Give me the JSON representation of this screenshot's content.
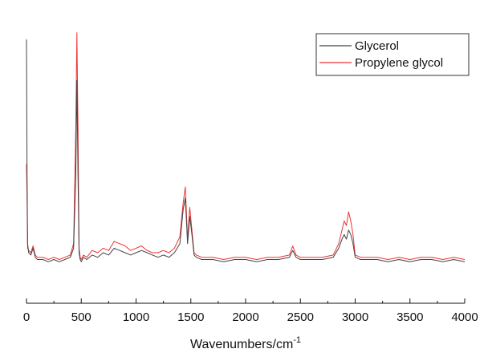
{
  "chart_data": {
    "type": "line",
    "xlabel": "Wavenumbers/cm",
    "xlabel_superscript": "-1",
    "xlim": [
      0,
      4000
    ],
    "x_ticks": [
      0,
      500,
      1000,
      1500,
      2000,
      2500,
      3000,
      3500,
      4000
    ],
    "y_axis_visible": false,
    "ylim": [
      0,
      105
    ],
    "grid": false,
    "legend_position": "top-right",
    "colors": {
      "glycerol": "#444444",
      "propylene_glycol": "#ee3333"
    },
    "series": [
      {
        "name": "Glycerol",
        "x": [
          0,
          5,
          10,
          20,
          40,
          60,
          80,
          100,
          150,
          200,
          250,
          300,
          350,
          400,
          430,
          450,
          460,
          470,
          480,
          490,
          500,
          520,
          550,
          600,
          650,
          700,
          750,
          800,
          850,
          900,
          950,
          1000,
          1050,
          1100,
          1150,
          1200,
          1250,
          1300,
          1350,
          1400,
          1430,
          1450,
          1470,
          1490,
          1510,
          1530,
          1550,
          1600,
          1700,
          1800,
          1900,
          2000,
          2100,
          2200,
          2300,
          2400,
          2430,
          2460,
          2500,
          2600,
          2700,
          2800,
          2850,
          2880,
          2900,
          2920,
          2940,
          2960,
          2980,
          3000,
          3050,
          3100,
          3200,
          3300,
          3400,
          3500,
          3600,
          3700,
          3800,
          3900,
          4000
        ],
        "y": [
          100,
          40,
          10,
          6,
          5,
          8,
          4,
          3,
          3,
          2,
          3,
          2,
          3,
          4,
          8,
          40,
          82,
          40,
          6,
          3,
          2,
          4,
          3,
          5,
          4,
          6,
          5,
          8,
          7,
          6,
          5,
          6,
          7,
          6,
          5,
          4,
          5,
          4,
          6,
          10,
          25,
          30,
          10,
          22,
          14,
          5,
          4,
          3,
          3,
          2,
          3,
          3,
          2,
          3,
          3,
          4,
          7,
          4,
          3,
          3,
          3,
          4,
          8,
          12,
          14,
          12,
          16,
          14,
          10,
          4,
          3,
          3,
          3,
          2,
          3,
          2,
          3,
          3,
          2,
          3,
          2
        ]
      },
      {
        "name": "Propylene glycol",
        "x": [
          0,
          5,
          10,
          20,
          40,
          60,
          80,
          100,
          150,
          200,
          250,
          300,
          350,
          400,
          430,
          450,
          460,
          470,
          480,
          490,
          500,
          520,
          550,
          600,
          650,
          700,
          750,
          800,
          850,
          900,
          950,
          1000,
          1050,
          1100,
          1150,
          1200,
          1250,
          1300,
          1350,
          1400,
          1430,
          1450,
          1470,
          1490,
          1510,
          1530,
          1550,
          1600,
          1700,
          1800,
          1900,
          2000,
          2100,
          2200,
          2300,
          2400,
          2430,
          2460,
          2500,
          2600,
          2700,
          2800,
          2850,
          2880,
          2900,
          2920,
          2940,
          2960,
          2980,
          3000,
          3050,
          3100,
          3200,
          3300,
          3400,
          3500,
          3600,
          3700,
          3800,
          3900,
          4000
        ],
        "y": [
          45,
          30,
          8,
          7,
          6,
          9,
          5,
          4,
          4,
          3,
          4,
          3,
          4,
          5,
          10,
          60,
          103,
          60,
          8,
          4,
          3,
          5,
          4,
          7,
          6,
          8,
          7,
          11,
          10,
          9,
          7,
          8,
          9,
          7,
          6,
          6,
          7,
          6,
          8,
          13,
          28,
          35,
          12,
          26,
          16,
          6,
          5,
          4,
          4,
          3,
          4,
          4,
          3,
          4,
          4,
          5,
          9,
          5,
          4,
          4,
          4,
          5,
          10,
          16,
          20,
          18,
          24,
          20,
          14,
          5,
          4,
          4,
          4,
          3,
          4,
          3,
          4,
          4,
          3,
          4,
          3
        ]
      }
    ]
  }
}
